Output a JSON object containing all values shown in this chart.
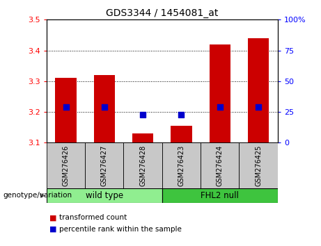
{
  "title": "GDS3344 / 1454081_at",
  "samples": [
    "GSM276426",
    "GSM276427",
    "GSM276428",
    "GSM276423",
    "GSM276424",
    "GSM276425"
  ],
  "transformed_counts": [
    3.31,
    3.32,
    3.13,
    3.155,
    3.42,
    3.44
  ],
  "percentile_ranks_y": [
    3.215,
    3.215,
    3.19,
    3.19,
    3.215,
    3.215
  ],
  "ylim_left": [
    3.1,
    3.5
  ],
  "ylim_right": [
    0,
    100
  ],
  "yticks_left": [
    3.1,
    3.2,
    3.3,
    3.4,
    3.5
  ],
  "yticks_right": [
    0,
    25,
    50,
    75,
    100
  ],
  "groups": [
    {
      "label": "wild type",
      "indices": [
        0,
        1,
        2
      ],
      "color": "#90EE90"
    },
    {
      "label": "FHL2 null",
      "indices": [
        3,
        4,
        5
      ],
      "color": "#3EC43E"
    }
  ],
  "bar_color": "#CC0000",
  "dot_color": "#0000CC",
  "bar_bottom": 3.1,
  "bar_width": 0.55,
  "dot_size": 30,
  "legend_items": [
    "transformed count",
    "percentile rank within the sample"
  ],
  "bg_plot": "#FFFFFF",
  "tick_gray": "#C8C8C8",
  "genotype_label": "genotype/variation"
}
